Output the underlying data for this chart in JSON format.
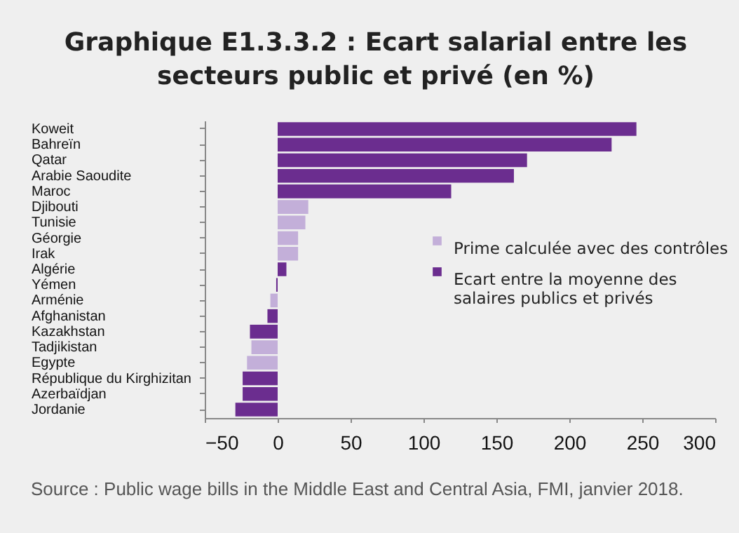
{
  "chart_data": {
    "type": "bar",
    "orientation": "horizontal",
    "title": "Graphique E1.3.3.2 : Ecart salarial entre les secteurs  public et privé (en %)",
    "categories": [
      "Koweit",
      "Bahreïn",
      "Qatar",
      "Arabie Saoudite",
      "Maroc",
      "Djibouti",
      "Tunisie",
      "Géorgie",
      "Irak",
      "Algérie",
      "Yémen",
      "Arménie",
      "Afghanistan",
      "Kazakhstan",
      "Tadjikistan",
      "Egypte",
      "République du Kirghizitan",
      "Azerbaïdjan",
      "Jordanie"
    ],
    "series": [
      {
        "name": "Prime calculée avec des contrôles",
        "color": "#c3afd9",
        "values": [
          null,
          null,
          null,
          null,
          null,
          21,
          19,
          14,
          14,
          null,
          null,
          -5,
          null,
          null,
          -18,
          -21,
          null,
          null,
          null
        ]
      },
      {
        "name": "Ecart entre la moyenne des salaires publics et privés",
        "color": "#6b2d8f",
        "values": [
          246,
          229,
          171,
          162,
          119,
          null,
          null,
          null,
          null,
          6,
          -1,
          null,
          -7,
          -19,
          null,
          null,
          -24,
          -24,
          -29
        ]
      }
    ],
    "xlim": [
      -50,
      300
    ],
    "xticks": [
      -50,
      0,
      50,
      100,
      150,
      200,
      250,
      300
    ],
    "grid": false,
    "legend": "right",
    "annotations": [
      "Source : Public wage bills in the Middle East and Central Asia, FMI, janvier 2018."
    ]
  }
}
